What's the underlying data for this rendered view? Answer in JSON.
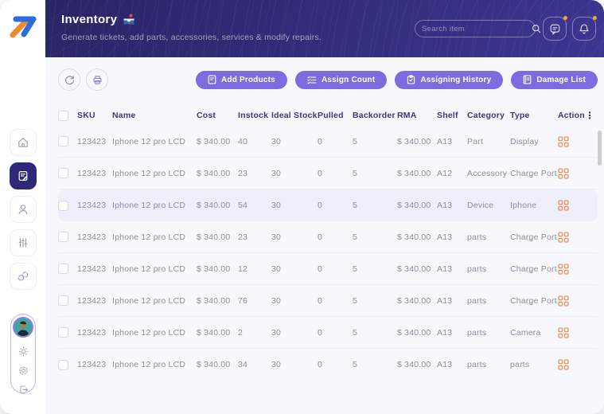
{
  "app": {
    "logo_name": "repair-shop-logo"
  },
  "header": {
    "title": "Inventory",
    "subtitle": "Generate tickets, add parts, accessories, services & modify repairs.",
    "search_placeholder": "Search item"
  },
  "toolbar": {
    "buttons": [
      {
        "label": "Add Products"
      },
      {
        "label": "Assign Count"
      },
      {
        "label": "Assigning History"
      },
      {
        "label": "Damage List"
      }
    ]
  },
  "table": {
    "columns": [
      "SKU",
      "Name",
      "Cost",
      "Instock",
      "Ideal Stock",
      "Pulled",
      "Backorder",
      "RMA",
      "Shelf",
      "Category",
      "Type",
      "Action"
    ],
    "rows": [
      {
        "sku": "123423",
        "name": "Iphone 12 pro LCD",
        "cost": "$ 340.00",
        "instock": "40",
        "ideal_stock": "30",
        "pulled": "0",
        "backorder": "5",
        "rma": "$ 340.00",
        "shelf": "A13",
        "category": "Part",
        "type": "Display",
        "highlighted": false
      },
      {
        "sku": "123423",
        "name": "Iphone 12 pro LCD",
        "cost": "$ 340.00",
        "instock": "23",
        "ideal_stock": "30",
        "pulled": "0",
        "backorder": "5",
        "rma": "$ 340.00",
        "shelf": "A12",
        "category": "Accessory",
        "type": "Charge Port",
        "highlighted": false
      },
      {
        "sku": "123423",
        "name": "Iphone 12 pro LCD",
        "cost": "$ 340.00",
        "instock": "54",
        "ideal_stock": "30",
        "pulled": "0",
        "backorder": "5",
        "rma": "$ 340.00",
        "shelf": "A13",
        "category": "Device",
        "type": "Iphone",
        "highlighted": true
      },
      {
        "sku": "123423",
        "name": "Iphone 12 pro LCD",
        "cost": "$ 340.00",
        "instock": "23",
        "ideal_stock": "30",
        "pulled": "0",
        "backorder": "5",
        "rma": "$ 340.00",
        "shelf": "A13",
        "category": "parts",
        "type": "Charge Port",
        "highlighted": false
      },
      {
        "sku": "123423",
        "name": "Iphone 12 pro LCD",
        "cost": "$ 340.00",
        "instock": "12",
        "ideal_stock": "30",
        "pulled": "0",
        "backorder": "5",
        "rma": "$ 340.00",
        "shelf": "A13",
        "category": "parts",
        "type": "Charge Port",
        "highlighted": false
      },
      {
        "sku": "123423",
        "name": "Iphone 12 pro LCD",
        "cost": "$ 340.00",
        "instock": "76",
        "ideal_stock": "30",
        "pulled": "0",
        "backorder": "5",
        "rma": "$ 340.00",
        "shelf": "A13",
        "category": "parts",
        "type": "Charge Port",
        "highlighted": false
      },
      {
        "sku": "123423",
        "name": "Iphone 12 pro LCD",
        "cost": "$ 340.00",
        "instock": "2",
        "ideal_stock": "30",
        "pulled": "0",
        "backorder": "5",
        "rma": "$ 340.00",
        "shelf": "A13",
        "category": "parts",
        "type": "Camera",
        "highlighted": false
      },
      {
        "sku": "123423",
        "name": "Iphone 12 pro LCD",
        "cost": "$ 340.00",
        "instock": "34",
        "ideal_stock": "30",
        "pulled": "0",
        "backorder": "5",
        "rma": "$ 340.00",
        "shelf": "A13",
        "category": "parts",
        "type": "parts",
        "highlighted": false
      }
    ]
  },
  "colors": {
    "header_bg_start": "#2A2565",
    "header_bg_end": "#3D3691",
    "accent_purple": "#7D6CE0",
    "active_nav": "#2E2879",
    "action_orange": "#F0905E",
    "badge_orange": "#F5A13B",
    "highlight_row": "#EDEFFB",
    "table_header_text": "#39387E",
    "cell_text": "#8A8DA3",
    "main_bg": "#F7F8FC"
  }
}
